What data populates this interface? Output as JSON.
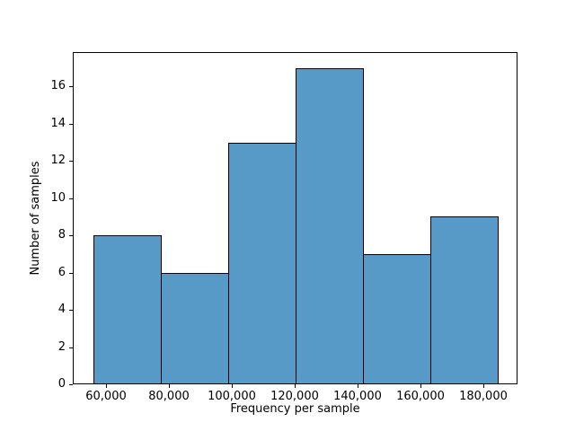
{
  "chart_data": {
    "type": "histogram",
    "title": "",
    "xlabel": "Frequency per sample",
    "ylabel": "Number of samples",
    "bin_edges": [
      55900,
      77300,
      98700,
      120100,
      141500,
      162900,
      184300
    ],
    "counts": [
      8,
      6,
      13,
      17,
      7,
      9
    ],
    "x_tick_values": [
      60000,
      80000,
      100000,
      120000,
      140000,
      160000,
      180000
    ],
    "x_tick_labels": [
      "60,000",
      "80,000",
      "100,000",
      "120,000",
      "140,000",
      "160,000",
      "180,000"
    ],
    "y_tick_values": [
      0,
      2,
      4,
      6,
      8,
      10,
      12,
      14,
      16
    ],
    "y_tick_labels": [
      "0",
      "2",
      "4",
      "6",
      "8",
      "10",
      "12",
      "14",
      "16"
    ],
    "xlim": [
      49480,
      190720
    ],
    "ylim": [
      0,
      17.85
    ],
    "grid": false,
    "legend": null,
    "bar_fill_color": "#5799c7",
    "bar_edge_color": "#000000",
    "spine_color": "#000000",
    "text_color": "#000000",
    "background_color": "#ffffff"
  }
}
